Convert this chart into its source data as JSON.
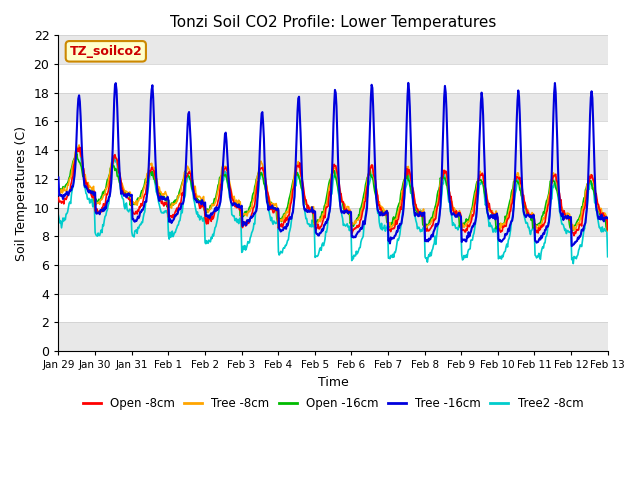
{
  "title": "Tonzi Soil CO2 Profile: Lower Temperatures",
  "xlabel": "Time",
  "ylabel": "Soil Temperatures (C)",
  "ylim": [
    0,
    22
  ],
  "yticks": [
    0,
    2,
    4,
    6,
    8,
    10,
    12,
    14,
    16,
    18,
    20,
    22
  ],
  "series_colors": {
    "Open -8cm": "#ff0000",
    "Tree -8cm": "#ffa500",
    "Open -16cm": "#00bb00",
    "Tree -16cm": "#0000dd",
    "Tree2 -8cm": "#00cccc"
  },
  "legend_label": "TZ_soilco2",
  "background_color": "#ffffff",
  "n_days": 15,
  "x_tick_labels": [
    "Jan 29",
    "Jan 30",
    "Jan 31",
    "Feb 1",
    "Feb 2",
    "Feb 3",
    "Feb 4",
    "Feb 5",
    "Feb 6",
    "Feb 7",
    "Feb 8",
    "Feb 9",
    "Feb 10",
    "Feb 11",
    "Feb 12",
    "Feb 13"
  ],
  "band_color": "#e8e8e8",
  "grid_line_color": "#cccccc"
}
